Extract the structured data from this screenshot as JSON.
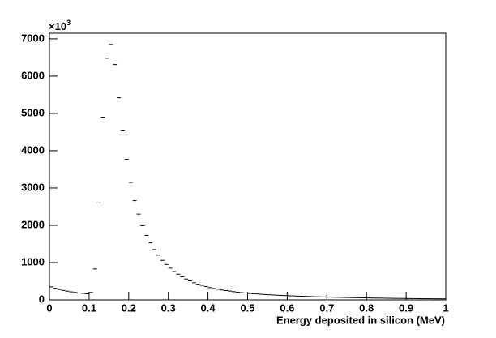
{
  "chart_data": {
    "type": "histogram",
    "x_label": "Energy deposited in silicon (MeV)",
    "y_multiplier": {
      "base": "×10",
      "exponent": "3"
    },
    "bins": [
      0,
      0.01,
      0.02,
      0.03,
      0.04,
      0.05,
      0.06,
      0.07,
      0.08,
      0.09,
      0.1,
      0.11,
      0.12,
      0.13,
      0.14,
      0.15,
      0.16,
      0.17,
      0.18,
      0.19,
      0.2,
      0.21,
      0.22,
      0.23,
      0.24,
      0.25,
      0.26,
      0.27,
      0.28,
      0.29,
      0.3,
      0.31,
      0.32,
      0.33,
      0.34,
      0.35,
      0.36,
      0.37,
      0.38,
      0.39,
      0.4,
      0.41,
      0.42,
      0.43,
      0.44,
      0.45,
      0.46,
      0.47,
      0.48,
      0.49,
      0.5,
      0.51,
      0.52,
      0.53,
      0.54,
      0.55,
      0.56,
      0.57,
      0.58,
      0.59,
      0.6,
      0.61,
      0.62,
      0.63,
      0.64,
      0.65,
      0.66,
      0.67,
      0.68,
      0.69,
      0.7,
      0.71,
      0.72,
      0.73,
      0.74,
      0.75,
      0.76,
      0.77,
      0.78,
      0.79,
      0.8,
      0.81,
      0.82,
      0.83,
      0.84,
      0.85,
      0.86,
      0.87,
      0.88,
      0.89,
      0.9,
      0.91,
      0.92,
      0.93,
      0.94,
      0.95,
      0.96,
      0.97,
      0.98,
      0.99,
      1
    ],
    "values": [
      350,
      310,
      280,
      255,
      235,
      215,
      200,
      185,
      175,
      165,
      200,
      830,
      2600,
      4900,
      6480,
      6850,
      6310,
      5420,
      4530,
      3770,
      3150,
      2660,
      2300,
      1990,
      1730,
      1530,
      1350,
      1200,
      1060,
      950,
      850,
      760,
      690,
      620,
      560,
      510,
      460,
      420,
      390,
      360,
      330,
      305,
      285,
      265,
      250,
      235,
      220,
      205,
      195,
      185,
      175,
      165,
      158,
      150,
      143,
      137,
      131,
      125,
      120,
      115,
      110,
      106,
      102,
      98,
      94,
      90,
      87,
      84,
      81,
      78,
      75,
      72,
      70,
      67,
      65,
      62,
      60,
      58,
      56,
      54,
      52,
      50,
      48,
      47,
      45,
      43,
      42,
      40,
      39,
      38,
      36,
      35,
      34,
      33,
      32,
      31,
      30,
      29,
      28,
      27
    ],
    "color": "#000000",
    "xlim": [
      0,
      1
    ],
    "xticks": [
      0,
      0.1,
      0.2,
      0.3,
      0.4,
      0.5,
      0.6,
      0.7,
      0.8,
      0.9,
      1
    ],
    "ylim": [
      0,
      7150
    ],
    "yticks": [
      0,
      1000,
      2000,
      3000,
      4000,
      5000,
      6000,
      7000
    ]
  }
}
